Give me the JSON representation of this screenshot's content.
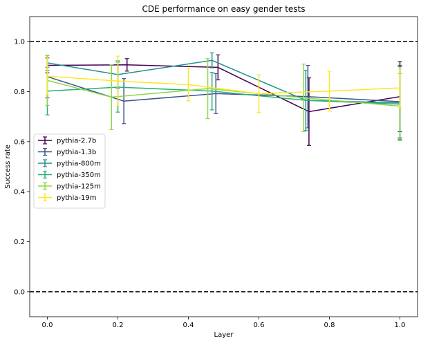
{
  "chart_data": {
    "type": "line",
    "title": "CDE performance on easy gender tests",
    "xlabel": "Layer",
    "ylabel": "Success rate",
    "xlim": [
      -0.05,
      1.05
    ],
    "ylim": [
      -0.1,
      1.1
    ],
    "xticks": [
      "0.0",
      "0.2",
      "0.4",
      "0.6",
      "0.8",
      "1.0"
    ],
    "yticks": [
      "0.0",
      "0.2",
      "0.4",
      "0.6",
      "0.8",
      "1.0"
    ],
    "hlines": [
      0.0,
      1.0
    ],
    "grid": false,
    "legend_position": "center-left",
    "series": [
      {
        "name": "pythia-2.7b",
        "color": "#440154",
        "x": [
          0.0,
          0.226,
          0.484,
          0.742,
          1.0
        ],
        "y": [
          0.905,
          0.907,
          0.897,
          0.72,
          0.78
        ],
        "err": [
          0.03,
          0.025,
          0.05,
          0.135,
          0.14
        ]
      },
      {
        "name": "pythia-1.3b",
        "color": "#3b528b",
        "x": [
          0.0,
          0.217,
          0.478,
          0.739,
          1.0
        ],
        "y": [
          0.86,
          0.762,
          0.792,
          0.78,
          0.76
        ],
        "err": [
          0.085,
          0.09,
          0.08,
          0.125,
          0.145
        ]
      },
      {
        "name": "pythia-800m",
        "color": "#21908d",
        "x": [
          0.0,
          0.2,
          0.467,
          0.733,
          1.0
        ],
        "y": [
          0.915,
          0.868,
          0.925,
          0.765,
          0.755
        ],
        "err": [
          0.03,
          0.055,
          0.03,
          0.12,
          0.145
        ]
      },
      {
        "name": "pythia-350m",
        "color": "#27ad81",
        "x": [
          0.0,
          0.2,
          0.467,
          0.733,
          1.0
        ],
        "y": [
          0.802,
          0.818,
          0.802,
          0.765,
          0.75
        ],
        "err": [
          0.095,
          0.1,
          0.075,
          0.12,
          0.145
        ]
      },
      {
        "name": "pythia-125m",
        "color": "#8fd744",
        "x": [
          0.0,
          0.182,
          0.455,
          0.727,
          1.0
        ],
        "y": [
          0.845,
          0.778,
          0.812,
          0.775,
          0.742
        ],
        "err": [
          0.1,
          0.13,
          0.12,
          0.135,
          0.13
        ]
      },
      {
        "name": "pythia-19m",
        "color": "#fde725",
        "x": [
          0.0,
          0.2,
          0.4,
          0.6,
          0.8,
          1.0
        ],
        "y": [
          0.862,
          0.842,
          0.828,
          0.792,
          0.802,
          0.815
        ],
        "err": [
          0.075,
          0.1,
          0.065,
          0.075,
          0.08,
          0.08
        ]
      }
    ]
  }
}
